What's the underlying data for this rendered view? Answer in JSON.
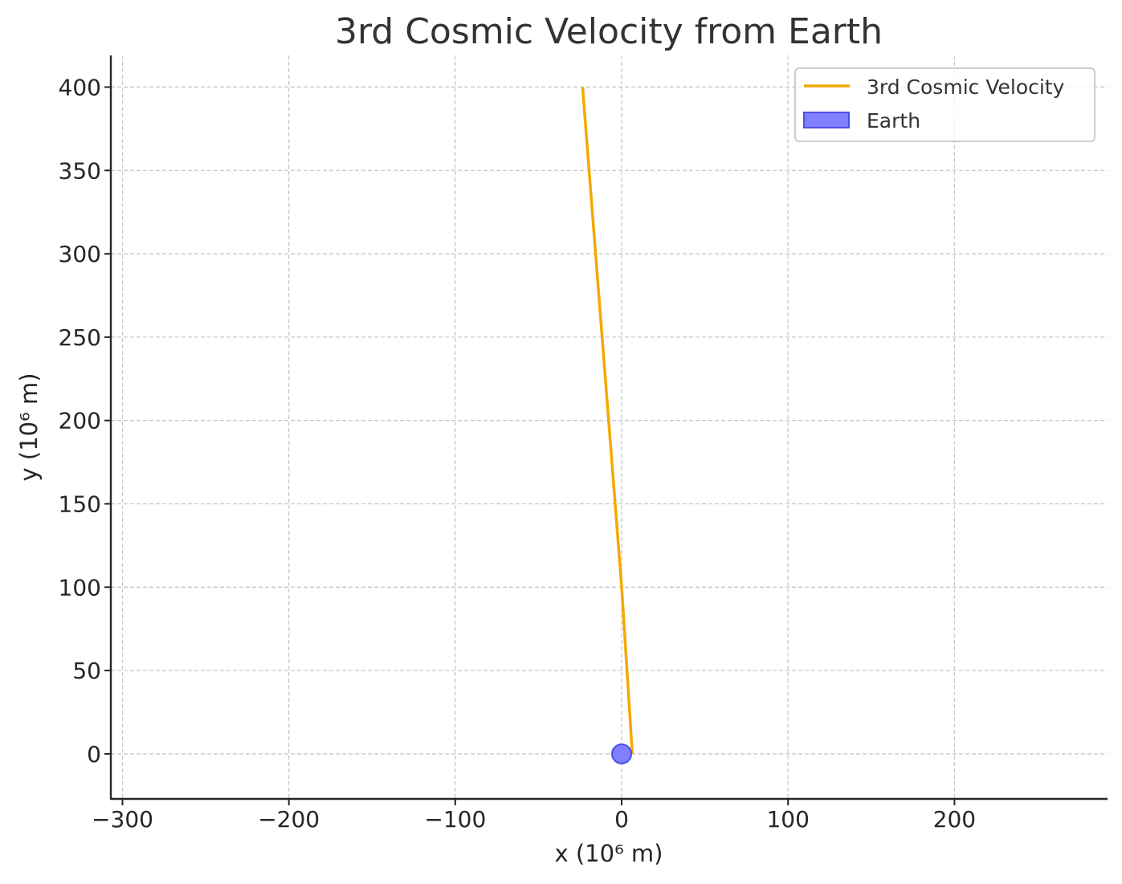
{
  "chart_data": {
    "type": "line",
    "title": "3rd Cosmic Velocity from Earth",
    "xlabel": "x (10⁶ m)",
    "ylabel": "y (10⁶ m)",
    "xlim": [
      -307,
      292
    ],
    "ylim": [
      -27,
      419
    ],
    "xticks": [
      -300,
      -200,
      -100,
      0,
      100,
      200
    ],
    "xtick_labels": [
      "−300",
      "−200",
      "−100",
      "0",
      "100",
      "200"
    ],
    "yticks": [
      0,
      50,
      100,
      150,
      200,
      250,
      300,
      350,
      400
    ],
    "ytick_labels": [
      "0",
      "50",
      "100",
      "150",
      "200",
      "250",
      "300",
      "350",
      "400"
    ],
    "grid": true,
    "legend_position": "top-right",
    "series": [
      {
        "name": "3rd Cosmic Velocity",
        "color": "#f5a800",
        "x": [
          6.4,
          0,
          -23.5
        ],
        "y": [
          0,
          100,
          400
        ]
      }
    ],
    "markers": [
      {
        "name": "Earth",
        "x": 0,
        "y": 0,
        "fill": "#7f7fff",
        "edge": "#4f4fe6"
      }
    ]
  }
}
